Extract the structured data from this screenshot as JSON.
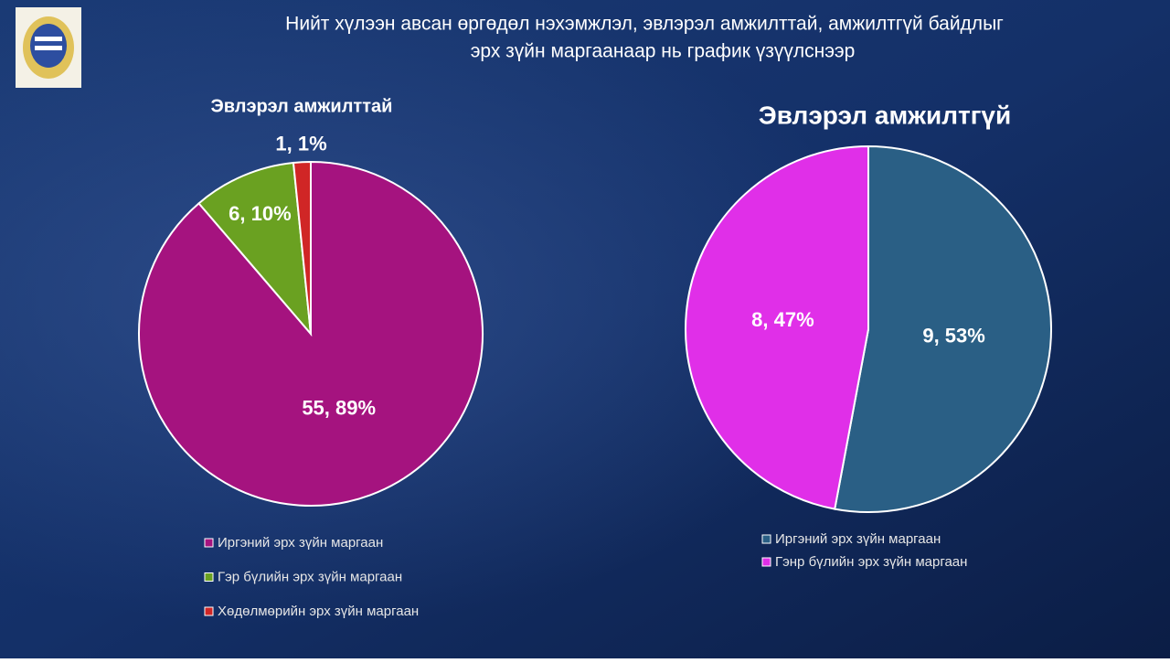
{
  "header": {
    "title_lines": [
      "Нийт хүлээн авсан өргөдөл нэхэмжлэл, эвлэрэл амжилттай, амжилтгүй байдлыг",
      "эрх зүйн маргаанаар нь график үзүүлснээр"
    ]
  },
  "chart_data": [
    {
      "type": "pie",
      "title": "Эвлэрэл амжилттай",
      "categories": [
        "Иргэний эрх зүйн маргаан",
        "Гэр бүлийн эрх зүйн маргаан",
        "Хөдөлмөрийн эрх зүйн маргаан"
      ],
      "values": [
        55,
        6,
        1
      ],
      "value_labels": [
        "55, 89%",
        "6, 10%",
        "1, 1%"
      ],
      "colors": [
        "#a5137f",
        "#6aa121",
        "#d02626"
      ]
    },
    {
      "type": "pie",
      "title": "Эвлэрэл амжилтгүй",
      "categories": [
        "Иргэний эрх зүйн маргаан",
        "Гэнр бүлийн эрх зүйн маргаан"
      ],
      "values": [
        9,
        8
      ],
      "value_labels": [
        "9, 53%",
        "8, 47%"
      ],
      "colors": [
        "#2a5f85",
        "#e02fe8"
      ]
    }
  ]
}
